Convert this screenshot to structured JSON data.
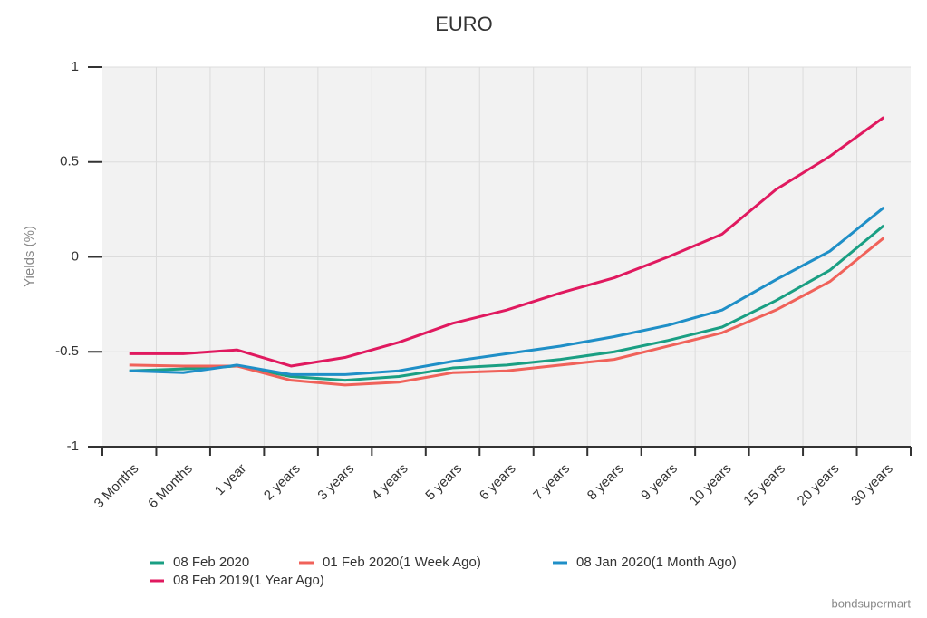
{
  "chart_data": {
    "type": "line",
    "title": "EURO",
    "y_label": "Yields (%)",
    "source": "bondsupermart",
    "categories": [
      "3 Months",
      "6 Months",
      "1 year",
      "2 years",
      "3 years",
      "4 years",
      "5 years",
      "6 years",
      "7 years",
      "8 years",
      "9 years",
      "10 years",
      "15 years",
      "20 years",
      "30 years"
    ],
    "series": [
      {
        "name": "08 Feb 2020",
        "color": "#1a9f83",
        "values": [
          -0.6,
          -0.59,
          -0.575,
          -0.63,
          -0.65,
          -0.63,
          -0.585,
          -0.57,
          -0.54,
          -0.5,
          -0.44,
          -0.37,
          -0.23,
          -0.07,
          0.165
        ]
      },
      {
        "name": "01 Feb 2020(1 Week Ago)",
        "color": "#f0625a",
        "values": [
          -0.57,
          -0.575,
          -0.575,
          -0.65,
          -0.675,
          -0.66,
          -0.61,
          -0.6,
          -0.57,
          -0.54,
          -0.47,
          -0.4,
          -0.28,
          -0.13,
          0.1
        ]
      },
      {
        "name": "08 Jan 2020(1 Month Ago)",
        "color": "#1f8fc7",
        "values": [
          -0.6,
          -0.61,
          -0.57,
          -0.62,
          -0.62,
          -0.6,
          -0.55,
          -0.51,
          -0.47,
          -0.42,
          -0.36,
          -0.28,
          -0.12,
          0.03,
          0.26
        ]
      },
      {
        "name": "08 Feb 2019(1 Year Ago)",
        "color": "#e0195f",
        "values": [
          -0.51,
          -0.51,
          -0.49,
          -0.575,
          -0.53,
          -0.45,
          -0.35,
          -0.28,
          -0.19,
          -0.11,
          0.0,
          0.12,
          0.355,
          0.53,
          0.735
        ]
      }
    ],
    "ylim": [
      -1,
      1
    ],
    "yticks": [
      1,
      0.5,
      0,
      -0.5,
      -1
    ],
    "grid": true,
    "legend": "bottom"
  }
}
